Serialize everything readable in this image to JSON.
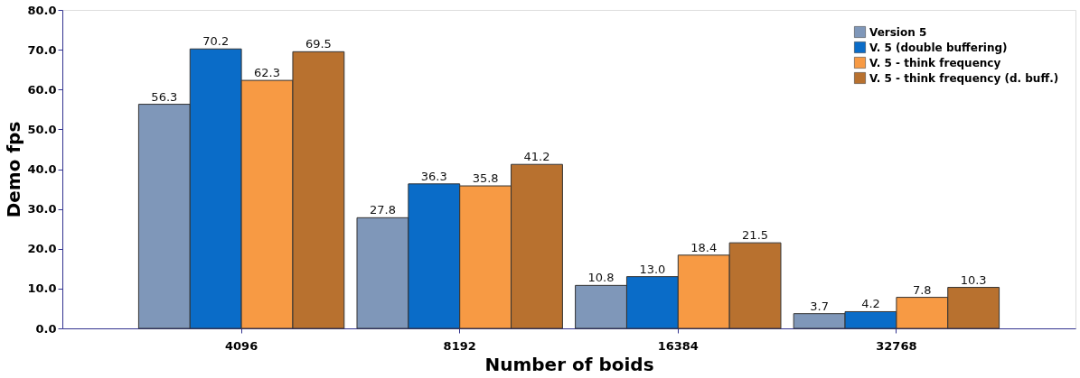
{
  "chart_data": {
    "type": "bar",
    "xlabel": "Number of boids",
    "ylabel": "Demo fps",
    "categories": [
      "4096",
      "8192",
      "16384",
      "32768"
    ],
    "series": [
      {
        "name": "Version 5",
        "color": "#7f97b9",
        "values": [
          56.3,
          27.8,
          10.8,
          3.7
        ],
        "value_labels": [
          "56.3",
          "27.8",
          "10.8",
          "3.7"
        ]
      },
      {
        "name": "V. 5 (double buffering)",
        "color": "#0a6cc8",
        "values": [
          70.2,
          36.3,
          13.0,
          4.2
        ],
        "value_labels": [
          "70.2",
          "36.3",
          "13.0",
          "4.2"
        ]
      },
      {
        "name": "V. 5 - think frequency",
        "color": "#f79a44",
        "values": [
          62.3,
          35.8,
          18.4,
          7.8
        ],
        "value_labels": [
          "62.3",
          "35.8",
          "18.4",
          "7.8"
        ]
      },
      {
        "name": "V. 5 - think frequency (d. buff.)",
        "color": "#b8712f",
        "values": [
          69.5,
          41.2,
          21.5,
          10.3
        ],
        "value_labels": [
          "69.5",
          "41.2",
          "21.5",
          "10.3"
        ]
      }
    ],
    "ylim": [
      0,
      80
    ],
    "yticks": [
      {
        "value": 0,
        "label": "0.0"
      },
      {
        "value": 10,
        "label": "10.0"
      },
      {
        "value": 20,
        "label": "20.0"
      },
      {
        "value": 30,
        "label": "30.0"
      },
      {
        "value": 40,
        "label": "40.0"
      },
      {
        "value": 50,
        "label": "50.0"
      },
      {
        "value": 60,
        "label": "60.0"
      },
      {
        "value": 70,
        "label": "70.0"
      },
      {
        "value": 80,
        "label": "80.0"
      }
    ],
    "grid": false,
    "legend": "top right"
  }
}
